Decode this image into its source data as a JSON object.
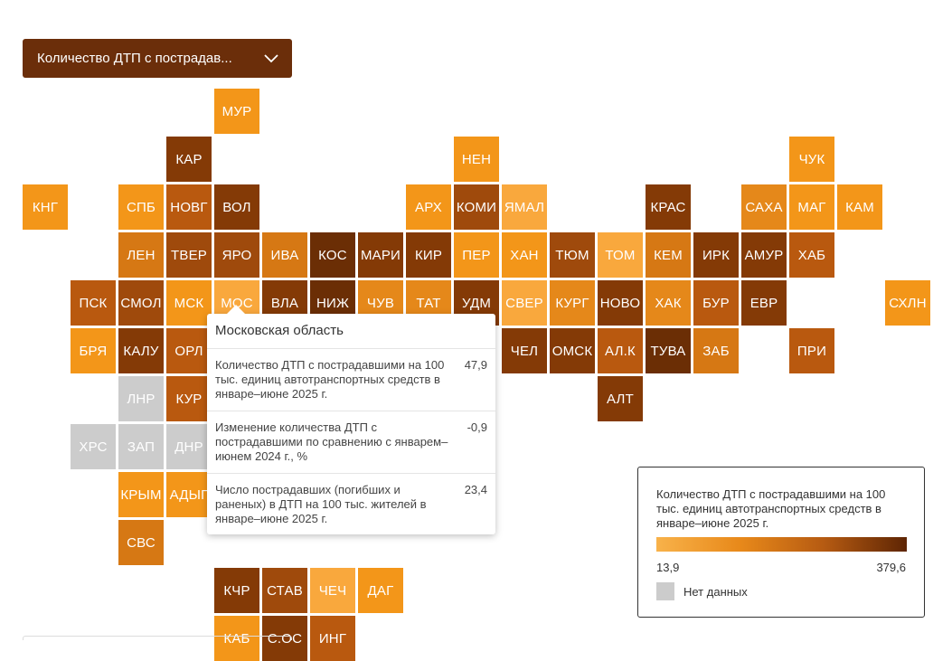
{
  "dropdown": {
    "label": "Количество ДТП с пострадав...",
    "icon": "chevron-down-icon"
  },
  "colors": {
    "c1": "#f9a83d",
    "c2": "#f39619",
    "c3": "#e5881a",
    "c4": "#d67814",
    "c5": "#b9590f",
    "c6": "#9f4a0c",
    "c7": "#843a06",
    "c8": "#6b2e05",
    "nodata": "#cccccc"
  },
  "regions": [
    {
      "code": "МУР",
      "col": 4,
      "row": 0,
      "c": "c2"
    },
    {
      "code": "КАР",
      "col": 3,
      "row": 1,
      "c": "c7"
    },
    {
      "code": "НЕН",
      "col": 9,
      "row": 1,
      "c": "c2"
    },
    {
      "code": "ЧУК",
      "col": 16,
      "row": 1,
      "c": "c2"
    },
    {
      "code": "КНГ",
      "col": 0,
      "row": 2,
      "c": "c2"
    },
    {
      "code": "СПБ",
      "col": 2,
      "row": 2,
      "c": "c2"
    },
    {
      "code": "НОВГ",
      "col": 3,
      "row": 2,
      "c": "c5"
    },
    {
      "code": "ВОЛ",
      "col": 4,
      "row": 2,
      "c": "c7"
    },
    {
      "code": "АРХ",
      "col": 8,
      "row": 2,
      "c": "c2"
    },
    {
      "code": "КОМИ",
      "col": 9,
      "row": 2,
      "c": "c6"
    },
    {
      "code": "ЯМАЛ",
      "col": 10,
      "row": 2,
      "c": "c1"
    },
    {
      "code": "КРАС",
      "col": 13,
      "row": 2,
      "c": "c7"
    },
    {
      "code": "САХА",
      "col": 15,
      "row": 2,
      "c": "c3"
    },
    {
      "code": "МАГ",
      "col": 16,
      "row": 2,
      "c": "c2"
    },
    {
      "code": "КАМ",
      "col": 17,
      "row": 2,
      "c": "c2"
    },
    {
      "code": "ЛЕН",
      "col": 2,
      "row": 3,
      "c": "c4"
    },
    {
      "code": "ТВЕР",
      "col": 3,
      "row": 3,
      "c": "c6"
    },
    {
      "code": "ЯРО",
      "col": 4,
      "row": 3,
      "c": "c6"
    },
    {
      "code": "ИВА",
      "col": 5,
      "row": 3,
      "c": "c4"
    },
    {
      "code": "КОС",
      "col": 6,
      "row": 3,
      "c": "c8"
    },
    {
      "code": "МАРИ",
      "col": 7,
      "row": 3,
      "c": "c7"
    },
    {
      "code": "КИР",
      "col": 8,
      "row": 3,
      "c": "c7"
    },
    {
      "code": "ПЕР",
      "col": 9,
      "row": 3,
      "c": "c2"
    },
    {
      "code": "ХАН",
      "col": 10,
      "row": 3,
      "c": "c2"
    },
    {
      "code": "ТЮМ",
      "col": 11,
      "row": 3,
      "c": "c6"
    },
    {
      "code": "ТОМ",
      "col": 12,
      "row": 3,
      "c": "c1"
    },
    {
      "code": "КЕМ",
      "col": 13,
      "row": 3,
      "c": "c4"
    },
    {
      "code": "ИРК",
      "col": 14,
      "row": 3,
      "c": "c7"
    },
    {
      "code": "АМУР",
      "col": 15,
      "row": 3,
      "c": "c7"
    },
    {
      "code": "ХАБ",
      "col": 16,
      "row": 3,
      "c": "c5"
    },
    {
      "code": "ПСК",
      "col": 1,
      "row": 4,
      "c": "c5"
    },
    {
      "code": "СМОЛ",
      "col": 2,
      "row": 4,
      "c": "c6"
    },
    {
      "code": "МСК",
      "col": 3,
      "row": 4,
      "c": "c2"
    },
    {
      "code": "МОС",
      "col": 4,
      "row": 4,
      "c": "c1"
    },
    {
      "code": "ВЛА",
      "col": 5,
      "row": 4,
      "c": "c7"
    },
    {
      "code": "НИЖ",
      "col": 6,
      "row": 4,
      "c": "c8"
    },
    {
      "code": "ЧУВ",
      "col": 7,
      "row": 4,
      "c": "c3"
    },
    {
      "code": "ТАТ",
      "col": 8,
      "row": 4,
      "c": "c3"
    },
    {
      "code": "УДМ",
      "col": 9,
      "row": 4,
      "c": "c7"
    },
    {
      "code": "СВЕР",
      "col": 10,
      "row": 4,
      "c": "c1"
    },
    {
      "code": "КУРГ",
      "col": 11,
      "row": 4,
      "c": "c3"
    },
    {
      "code": "НОВО",
      "col": 12,
      "row": 4,
      "c": "c7"
    },
    {
      "code": "ХАК",
      "col": 13,
      "row": 4,
      "c": "c3"
    },
    {
      "code": "БУР",
      "col": 14,
      "row": 4,
      "c": "c5"
    },
    {
      "code": "ЕВР",
      "col": 15,
      "row": 4,
      "c": "c7"
    },
    {
      "code": "СХЛН",
      "col": 18,
      "row": 4,
      "c": "c2"
    },
    {
      "code": "БРЯ",
      "col": 1,
      "row": 5,
      "c": "c2"
    },
    {
      "code": "КАЛУ",
      "col": 2,
      "row": 5,
      "c": "c7"
    },
    {
      "code": "ОРЛ",
      "col": 3,
      "row": 5,
      "c": "c5"
    },
    {
      "code": "ЧЕЛ",
      "col": 10,
      "row": 5,
      "c": "c7"
    },
    {
      "code": "ОМСК",
      "col": 11,
      "row": 5,
      "c": "c7"
    },
    {
      "code": "АЛ.К",
      "col": 12,
      "row": 5,
      "c": "c5"
    },
    {
      "code": "ТУВА",
      "col": 13,
      "row": 5,
      "c": "c8"
    },
    {
      "code": "ЗАБ",
      "col": 14,
      "row": 5,
      "c": "c4"
    },
    {
      "code": "ПРИ",
      "col": 16,
      "row": 5,
      "c": "c5"
    },
    {
      "code": "ЛНР",
      "col": 2,
      "row": 6,
      "c": "nodata"
    },
    {
      "code": "КУР",
      "col": 3,
      "row": 6,
      "c": "c5"
    },
    {
      "code": "АЛТ",
      "col": 12,
      "row": 6,
      "c": "c7"
    },
    {
      "code": "ХРС",
      "col": 1,
      "row": 7,
      "c": "nodata"
    },
    {
      "code": "ЗАП",
      "col": 2,
      "row": 7,
      "c": "nodata"
    },
    {
      "code": "ДНР",
      "col": 3,
      "row": 7,
      "c": "nodata"
    },
    {
      "code": "КРЫМ",
      "col": 2,
      "row": 8,
      "c": "c2"
    },
    {
      "code": "АДЫГ",
      "col": 3,
      "row": 8,
      "c": "c2"
    },
    {
      "code": "СВС",
      "col": 2,
      "row": 9,
      "c": "c4"
    },
    {
      "code": "КЧР",
      "col": 4,
      "row": 10,
      "c": "c7"
    },
    {
      "code": "СТАВ",
      "col": 5,
      "row": 10,
      "c": "c6"
    },
    {
      "code": "ЧЕЧ",
      "col": 6,
      "row": 10,
      "c": "c1"
    },
    {
      "code": "ДАГ",
      "col": 7,
      "row": 10,
      "c": "c2"
    },
    {
      "code": "КАБ",
      "col": 4,
      "row": 11,
      "c": "c2"
    },
    {
      "code": "С.ОС",
      "col": 5,
      "row": 11,
      "c": "c7"
    },
    {
      "code": "ИНГ",
      "col": 6,
      "row": 11,
      "c": "c5"
    }
  ],
  "tooltip": {
    "title": "Московская область",
    "rows": [
      {
        "label": "Количество ДТП с пострадавшими на 100 тыс. единиц автотранспортных средств в январе–июне 2025 г.",
        "value": "47,9"
      },
      {
        "label": "Изменение количества ДТП с пострадавшими по сравнению с январем–июнем 2024 г., %",
        "value": "-0,9"
      },
      {
        "label": "Число пострадавших (погибших и раненых) в ДТП на 100 тыс. жителей в январе–июне 2025 г.",
        "value": "23,4"
      }
    ]
  },
  "legend": {
    "title": "Количество ДТП с пострадавшими на 100 тыс. единиц автотранспортных средств в январе–июне 2025 г.",
    "min": "13,9",
    "max": "379,6",
    "nodata_label": "Нет данных"
  }
}
